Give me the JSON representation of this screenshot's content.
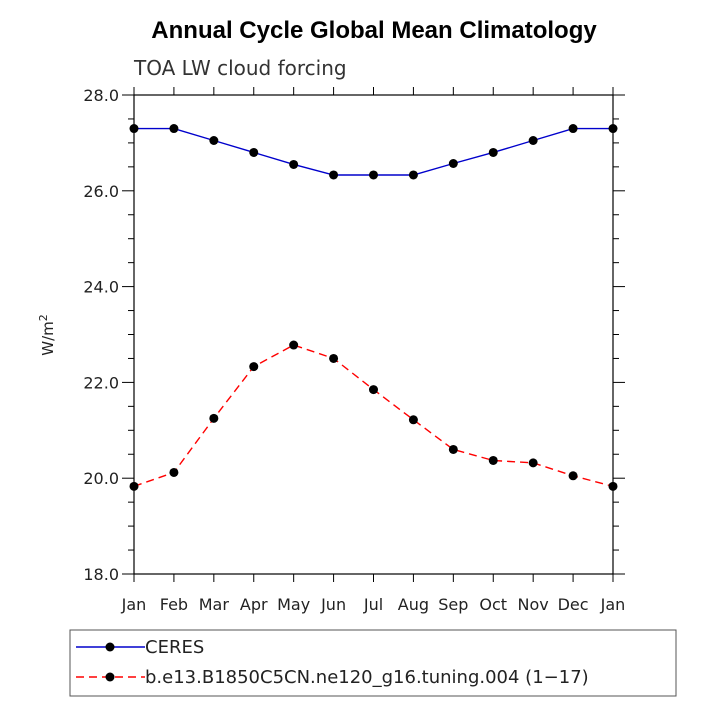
{
  "chart_data": {
    "type": "line",
    "title": "Annual Cycle Global Mean Climatology",
    "subtitle": "TOA LW cloud forcing",
    "ylabel": "W/m",
    "ylabel_sup": "2",
    "xlabel": "",
    "categories": [
      "Jan",
      "Feb",
      "Mar",
      "Apr",
      "May",
      "Jun",
      "Jul",
      "Aug",
      "Sep",
      "Oct",
      "Nov",
      "Dec",
      "Jan"
    ],
    "ylim": [
      18.0,
      28.0
    ],
    "yticks": [
      "18.0",
      "20.0",
      "22.0",
      "24.0",
      "26.0",
      "28.0"
    ],
    "series": [
      {
        "name": "CERES",
        "color": "#0000cc",
        "style": "solid",
        "values": [
          27.3,
          27.3,
          27.05,
          26.8,
          26.55,
          26.33,
          26.33,
          26.33,
          26.57,
          26.8,
          27.05,
          27.3,
          27.3
        ]
      },
      {
        "name": "b.e13.B1850C5CN.ne120_g16.tuning.004 (1−17)",
        "color": "#ff0000",
        "style": "dashed",
        "values": [
          19.83,
          20.12,
          21.25,
          22.33,
          22.78,
          22.5,
          21.85,
          21.22,
          20.6,
          20.37,
          20.32,
          20.05,
          19.83
        ]
      }
    ],
    "legend_position": "bottom"
  }
}
